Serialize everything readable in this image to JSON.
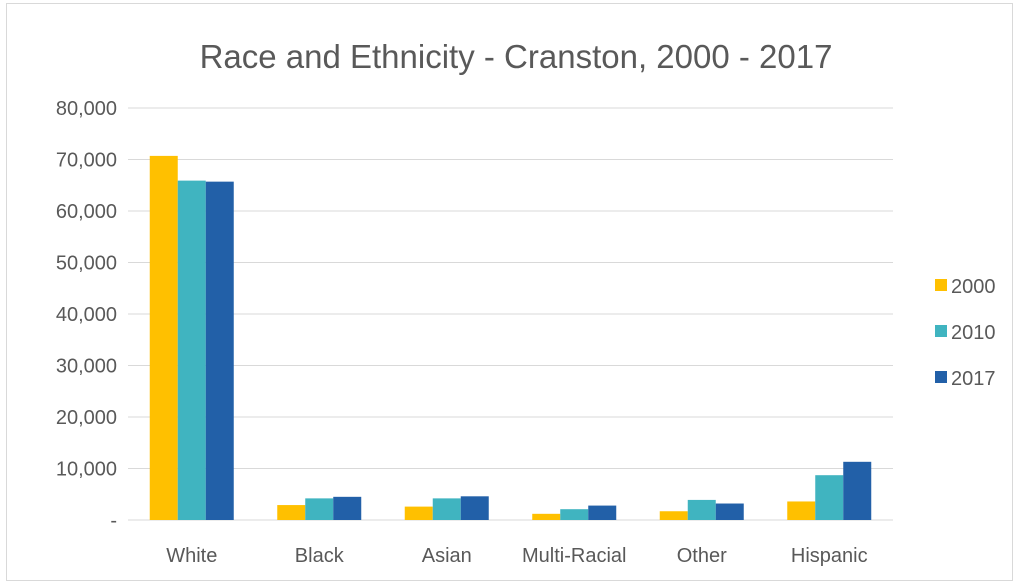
{
  "chart_data": {
    "type": "bar",
    "title": "Race and Ethnicity - Cranston, 2000 - 2017",
    "xlabel": "",
    "ylabel": "",
    "categories": [
      "White",
      "Black",
      "Asian",
      "Multi-Racial",
      "Other",
      "Hispanic"
    ],
    "series": [
      {
        "name": "2000",
        "color": "#FFC000",
        "values": [
          70700,
          2900,
          2600,
          1200,
          1700,
          3600
        ]
      },
      {
        "name": "2010",
        "color": "#40B4C0",
        "values": [
          65900,
          4200,
          4200,
          2100,
          3900,
          8700
        ]
      },
      {
        "name": "2017",
        "color": "#2260A8",
        "values": [
          65700,
          4500,
          4600,
          2800,
          3200,
          11300
        ]
      }
    ],
    "ylim": [
      0,
      80000
    ],
    "y_ticks": [
      {
        "value": 0,
        "label": "-"
      },
      {
        "value": 10000,
        "label": "10,000"
      },
      {
        "value": 20000,
        "label": "20,000"
      },
      {
        "value": 30000,
        "label": "30,000"
      },
      {
        "value": 40000,
        "label": "40,000"
      },
      {
        "value": 50000,
        "label": "50,000"
      },
      {
        "value": 60000,
        "label": "60,000"
      },
      {
        "value": 70000,
        "label": "70,000"
      },
      {
        "value": 80000,
        "label": "80,000"
      }
    ],
    "grid": true,
    "legend_position": "right"
  }
}
